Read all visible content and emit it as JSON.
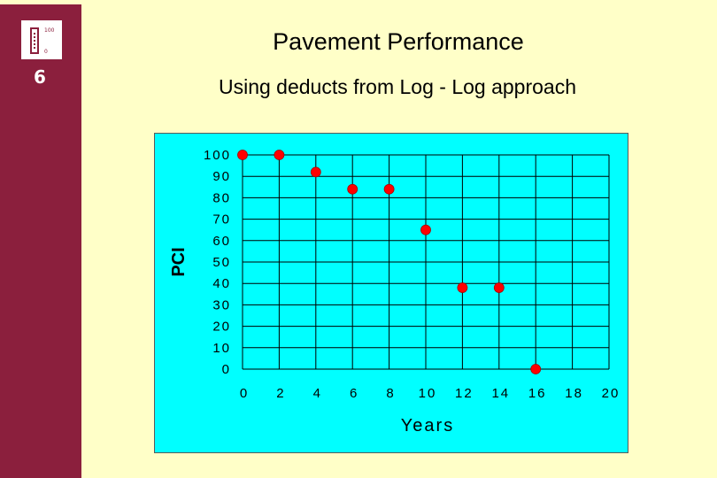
{
  "slide": {
    "number": "6",
    "logo": {
      "top_text": "100",
      "bottom_text": "0"
    },
    "title": "Pavement Performance",
    "subtitle": "Using deducts from Log - Log approach"
  },
  "colors": {
    "sidebar": "#8b1f3d",
    "background": "#ffffc8",
    "plot_background": "#00ffff",
    "marker": "#ff0000"
  },
  "chart_data": {
    "type": "scatter",
    "title": "",
    "xlabel": "Years",
    "ylabel": "PCI",
    "xlim": [
      0,
      20
    ],
    "ylim": [
      0,
      100
    ],
    "x_ticks": [
      "0",
      "2",
      "4",
      "6",
      "8",
      "10",
      "12",
      "14",
      "16",
      "18",
      "20"
    ],
    "y_ticks": [
      "0",
      "10",
      "20",
      "30",
      "40",
      "50",
      "60",
      "70",
      "80",
      "90",
      "100"
    ],
    "grid": true,
    "legend": "none",
    "series": [
      {
        "x": [
          0,
          2,
          4,
          6,
          8,
          10,
          12,
          14,
          16
        ],
        "y": [
          100,
          100,
          92,
          84,
          84,
          65,
          38,
          38,
          0
        ]
      }
    ]
  }
}
